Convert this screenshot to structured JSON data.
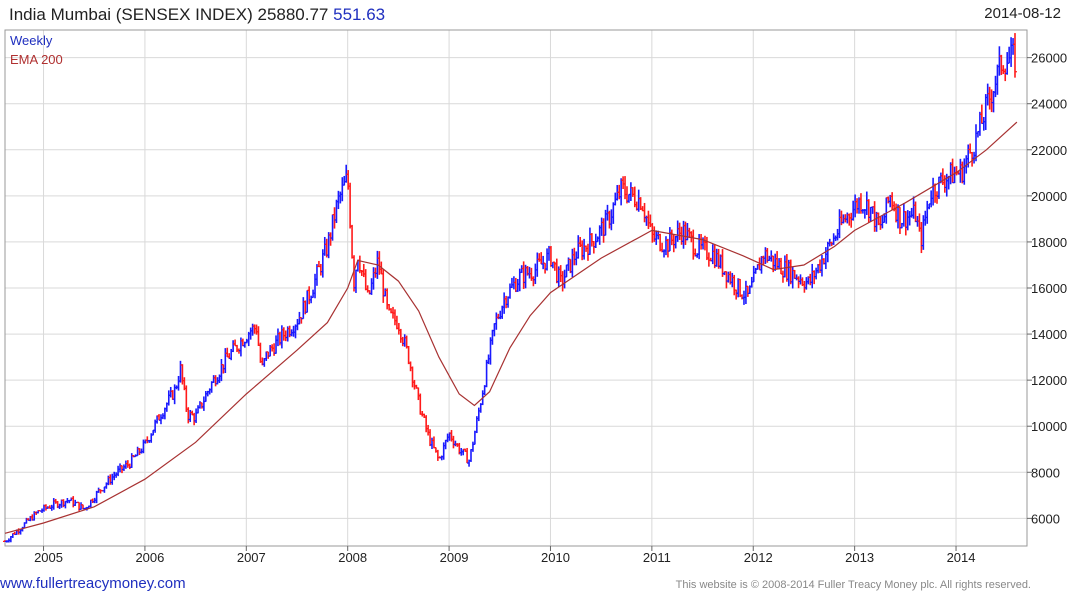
{
  "header": {
    "title": "India Mumbai (SENSEX INDEX)",
    "last": "25880.77",
    "change": "551.63",
    "date": "2014-08-12"
  },
  "colors": {
    "up": "#1a1aff",
    "down": "#ff1a1a",
    "ema": "#a83232",
    "label_weekly": "#1f2fbf",
    "label_ema": "#b03030",
    "grid": "#d9d9d9"
  },
  "chart_data": {
    "type": "line",
    "title": "India Mumbai (SENSEX INDEX)",
    "xlabel": "",
    "ylabel": "",
    "ylim": [
      4800,
      27200
    ],
    "xlim": [
      2004.62,
      2014.7
    ],
    "y_ticks": [
      6000,
      8000,
      10000,
      12000,
      14000,
      16000,
      18000,
      20000,
      22000,
      24000,
      26000
    ],
    "x_ticks": [
      "2005",
      "2006",
      "2007",
      "2008",
      "2009",
      "2010",
      "2011",
      "2012",
      "2013",
      "2014"
    ],
    "legend": [
      "Weekly",
      "EMA 200"
    ],
    "grid": true,
    "series": [
      {
        "name": "Weekly",
        "x": [
          2004.62,
          2004.8,
          2004.95,
          2005.1,
          2005.25,
          2005.4,
          2005.55,
          2005.7,
          2005.85,
          2006.0,
          2006.15,
          2006.3,
          2006.35,
          2006.42,
          2006.5,
          2006.65,
          2006.8,
          2006.95,
          2007.05,
          2007.1,
          2007.15,
          2007.2,
          2007.35,
          2007.5,
          2007.55,
          2007.65,
          2007.8,
          2007.9,
          2008.0,
          2008.04,
          2008.06,
          2008.1,
          2008.2,
          2008.3,
          2008.4,
          2008.5,
          2008.6,
          2008.7,
          2008.8,
          2008.9,
          2009.0,
          2009.1,
          2009.2,
          2009.3,
          2009.35,
          2009.45,
          2009.55,
          2009.7,
          2009.85,
          2010.0,
          2010.1,
          2010.25,
          2010.4,
          2010.55,
          2010.7,
          2010.8,
          2010.9,
          2011.0,
          2011.15,
          2011.3,
          2011.45,
          2011.6,
          2011.75,
          2011.85,
          2011.95,
          2012.1,
          2012.25,
          2012.4,
          2012.55,
          2012.75,
          2012.9,
          2013.05,
          2013.15,
          2013.25,
          2013.35,
          2013.45,
          2013.6,
          2013.65,
          2013.75,
          2013.9,
          2014.0,
          2014.05,
          2014.2,
          2014.35,
          2014.45,
          2014.55,
          2014.6
        ],
        "values": [
          5000,
          5700,
          6300,
          6600,
          6800,
          6400,
          7200,
          7900,
          8400,
          9200,
          10500,
          11600,
          12500,
          10500,
          10400,
          11800,
          12900,
          13700,
          14200,
          14300,
          12400,
          13100,
          13900,
          14600,
          15000,
          16000,
          17800,
          19700,
          20800,
          17800,
          16200,
          17500,
          15500,
          17200,
          14800,
          14500,
          13000,
          11000,
          9500,
          8500,
          9700,
          9000,
          8500,
          10800,
          12000,
          14400,
          15600,
          16500,
          16800,
          17400,
          16200,
          17500,
          18000,
          18800,
          20300,
          20000,
          19800,
          18200,
          17900,
          18500,
          17700,
          17500,
          16600,
          16000,
          15600,
          17500,
          17000,
          16600,
          16200,
          17800,
          19000,
          19800,
          19500,
          18500,
          20000,
          19000,
          19200,
          18000,
          20200,
          20800,
          21000,
          21000,
          22500,
          24500,
          25800,
          26000,
          25800
        ]
      },
      {
        "name": "EMA 200",
        "x": [
          2004.62,
          2005.0,
          2005.5,
          2006.0,
          2006.5,
          2007.0,
          2007.5,
          2007.8,
          2008.0,
          2008.1,
          2008.3,
          2008.5,
          2008.7,
          2008.9,
          2009.1,
          2009.25,
          2009.4,
          2009.6,
          2009.8,
          2010.0,
          2010.5,
          2011.0,
          2011.5,
          2011.9,
          2012.2,
          2012.5,
          2012.8,
          2013.0,
          2013.5,
          2014.0,
          2014.3,
          2014.6
        ],
        "values": [
          5350,
          5800,
          6500,
          7700,
          9300,
          11400,
          13300,
          14500,
          16000,
          17200,
          17000,
          16300,
          15000,
          13000,
          11400,
          10900,
          11500,
          13400,
          14800,
          15800,
          17300,
          18500,
          18100,
          17400,
          16800,
          17000,
          17800,
          18500,
          19700,
          21000,
          22000,
          23200
        ]
      }
    ]
  },
  "footer": {
    "url": "www.fullertreacymoney.com",
    "copyright": "This website is © 2008-2014 Fuller Treacy Money plc. All rights reserved."
  }
}
